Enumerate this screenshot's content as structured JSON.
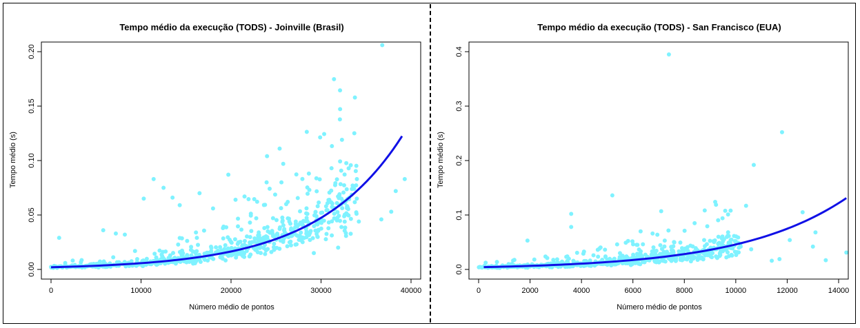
{
  "chart_data": [
    {
      "type": "scatter",
      "title": "Tempo médio da execução (TODS) - Joinville (Brasil)",
      "xlabel": "Número médio de pontos",
      "ylabel": "Tempo médio (s)",
      "xlim": [
        0,
        40000
      ],
      "ylim": [
        0,
        0.2
      ],
      "xticks": [
        0,
        10000,
        20000,
        30000,
        40000
      ],
      "xtick_labels": [
        "0",
        "10000",
        "20000",
        "30000",
        "40000"
      ],
      "yticks": [
        0.0,
        0.05,
        0.1,
        0.15,
        0.2
      ],
      "ytick_labels": [
        "0.00",
        "0.05",
        "0.10",
        "0.15",
        "0.20"
      ],
      "grid": false,
      "points_color": "#7ff2ff",
      "curve_color": "#1010e6",
      "outliers": [
        [
          36800,
          0.206
        ],
        [
          25400,
          0.111
        ],
        [
          24000,
          0.104
        ],
        [
          25800,
          0.097
        ],
        [
          11400,
          0.083
        ],
        [
          19700,
          0.087
        ],
        [
          12500,
          0.075
        ],
        [
          25600,
          0.08
        ],
        [
          16500,
          0.07
        ],
        [
          21500,
          0.067
        ],
        [
          28700,
          0.073
        ],
        [
          10300,
          0.065
        ],
        [
          38300,
          0.072
        ],
        [
          39300,
          0.083
        ],
        [
          26300,
          0.062
        ],
        [
          36700,
          0.046
        ],
        [
          37800,
          0.053
        ],
        [
          30000,
          0.052
        ],
        [
          32400,
          0.063
        ],
        [
          31900,
          0.02
        ],
        [
          34200,
          0.044
        ],
        [
          900,
          0.029
        ],
        [
          5800,
          0.036
        ],
        [
          7200,
          0.033
        ],
        [
          8200,
          0.032
        ],
        [
          22800,
          0.047
        ],
        [
          18000,
          0.056
        ],
        [
          14300,
          0.059
        ],
        [
          13500,
          0.066
        ],
        [
          20500,
          0.064
        ],
        [
          23700,
          0.038
        ],
        [
          29200,
          0.015
        ]
      ],
      "cluster": {
        "n": 700,
        "x_range": [
          0,
          34000
        ],
        "seed": 11
      },
      "trend_curve": {
        "a": 0.002,
        "b": 0.0001055,
        "x_range": [
          0,
          39000
        ]
      }
    },
    {
      "type": "scatter",
      "title": "Tempo médio da execução (TODS) - San Francisco (EUA)",
      "xlabel": "Número médio de pontos",
      "ylabel": "Tempo médio (s)",
      "xlim": [
        0,
        14000
      ],
      "ylim": [
        0,
        0.4
      ],
      "xticks": [
        0,
        2000,
        4000,
        6000,
        8000,
        10000,
        12000,
        14000
      ],
      "xtick_labels": [
        "0",
        "2000",
        "4000",
        "6000",
        "8000",
        "10000",
        "12000",
        "14000"
      ],
      "yticks": [
        0.0,
        0.1,
        0.2,
        0.3,
        0.4
      ],
      "ytick_labels": [
        "0.0",
        "0.1",
        "0.2",
        "0.3",
        "0.4"
      ],
      "grid": false,
      "points_color": "#7ff2ff",
      "curve_color": "#1010e6",
      "outliers": [
        [
          7400,
          0.395
        ],
        [
          11800,
          0.252
        ],
        [
          10700,
          0.192
        ],
        [
          5200,
          0.136
        ],
        [
          3600,
          0.102
        ],
        [
          7100,
          0.107
        ],
        [
          9200,
          0.124
        ],
        [
          12600,
          0.105
        ],
        [
          10400,
          0.117
        ],
        [
          9800,
          0.108
        ],
        [
          13100,
          0.068
        ],
        [
          13000,
          0.042
        ],
        [
          14300,
          0.031
        ],
        [
          13500,
          0.017
        ],
        [
          11700,
          0.019
        ],
        [
          11400,
          0.016
        ],
        [
          9700,
          0.101
        ],
        [
          1900,
          0.053
        ],
        [
          6300,
          0.07
        ],
        [
          8400,
          0.085
        ],
        [
          3600,
          0.078
        ],
        [
          10600,
          0.037
        ],
        [
          12100,
          0.054
        ],
        [
          8900,
          0.032
        ]
      ],
      "cluster": {
        "n": 650,
        "x_range": [
          0,
          10200
        ],
        "seed": 29
      },
      "trend_curve": {
        "a": 0.004,
        "b": 0.000244,
        "x_range": [
          200,
          14300
        ]
      }
    }
  ]
}
